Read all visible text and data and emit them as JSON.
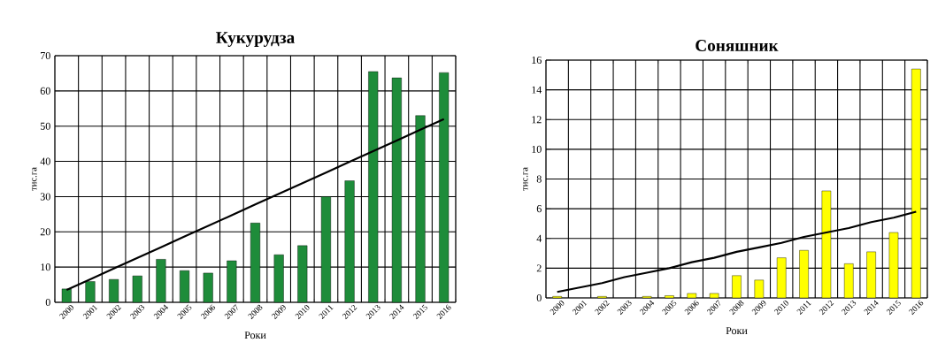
{
  "chart_data": [
    {
      "type": "bar",
      "title": "Кукурудза",
      "xlabel": "Роки",
      "ylabel": "тис.га",
      "categories": [
        "2000",
        "2001",
        "2002",
        "2003",
        "2004",
        "2005",
        "2006",
        "2007",
        "2008",
        "2009",
        "2010",
        "2011",
        "2012",
        "2013",
        "2014",
        "2015",
        "2016"
      ],
      "series": [
        {
          "color": "#1e8c3a",
          "values": [
            3.8,
            5.9,
            6.5,
            7.5,
            12.2,
            9.0,
            8.3,
            11.8,
            22.5,
            13.5,
            16.1,
            30.0,
            34.5,
            65.5,
            63.7,
            53.0,
            65.2
          ]
        },
        {
          "type": "line",
          "color": "#000000",
          "values": [
            3.5,
            6.5,
            9.6,
            12.6,
            15.6,
            18.7,
            21.7,
            24.7,
            27.8,
            30.8,
            33.8,
            36.8,
            39.9,
            42.9,
            45.9,
            49.0,
            52.0
          ]
        }
      ],
      "ylim": [
        0,
        70
      ],
      "yticks": [
        0,
        10,
        20,
        30,
        40,
        50,
        60,
        70
      ],
      "grid": true
    },
    {
      "type": "bar",
      "title": "Соняшник",
      "xlabel": "Роки",
      "ylabel": "тис.га",
      "categories": [
        "2000",
        "2001",
        "2002",
        "2003",
        "2004",
        "2005",
        "2006",
        "2007",
        "2008",
        "2009",
        "2010",
        "2011",
        "2012",
        "2013",
        "2014",
        "2015",
        "2016"
      ],
      "series": [
        {
          "color": "#ffff00",
          "values": [
            0.1,
            null,
            0.1,
            null,
            0.1,
            0.15,
            0.3,
            0.3,
            1.5,
            1.2,
            2.7,
            3.2,
            7.2,
            2.3,
            3.1,
            4.4,
            15.4
          ]
        },
        {
          "type": "line",
          "color": "#000000",
          "values": [
            0.4,
            0.7,
            1.0,
            1.4,
            1.7,
            2.0,
            2.4,
            2.7,
            3.1,
            3.4,
            3.7,
            4.1,
            4.4,
            4.7,
            5.1,
            5.4,
            5.8
          ]
        }
      ],
      "ylim": [
        0,
        16
      ],
      "yticks": [
        0,
        2,
        4,
        6,
        8,
        10,
        12,
        14,
        16
      ],
      "grid": true
    }
  ]
}
